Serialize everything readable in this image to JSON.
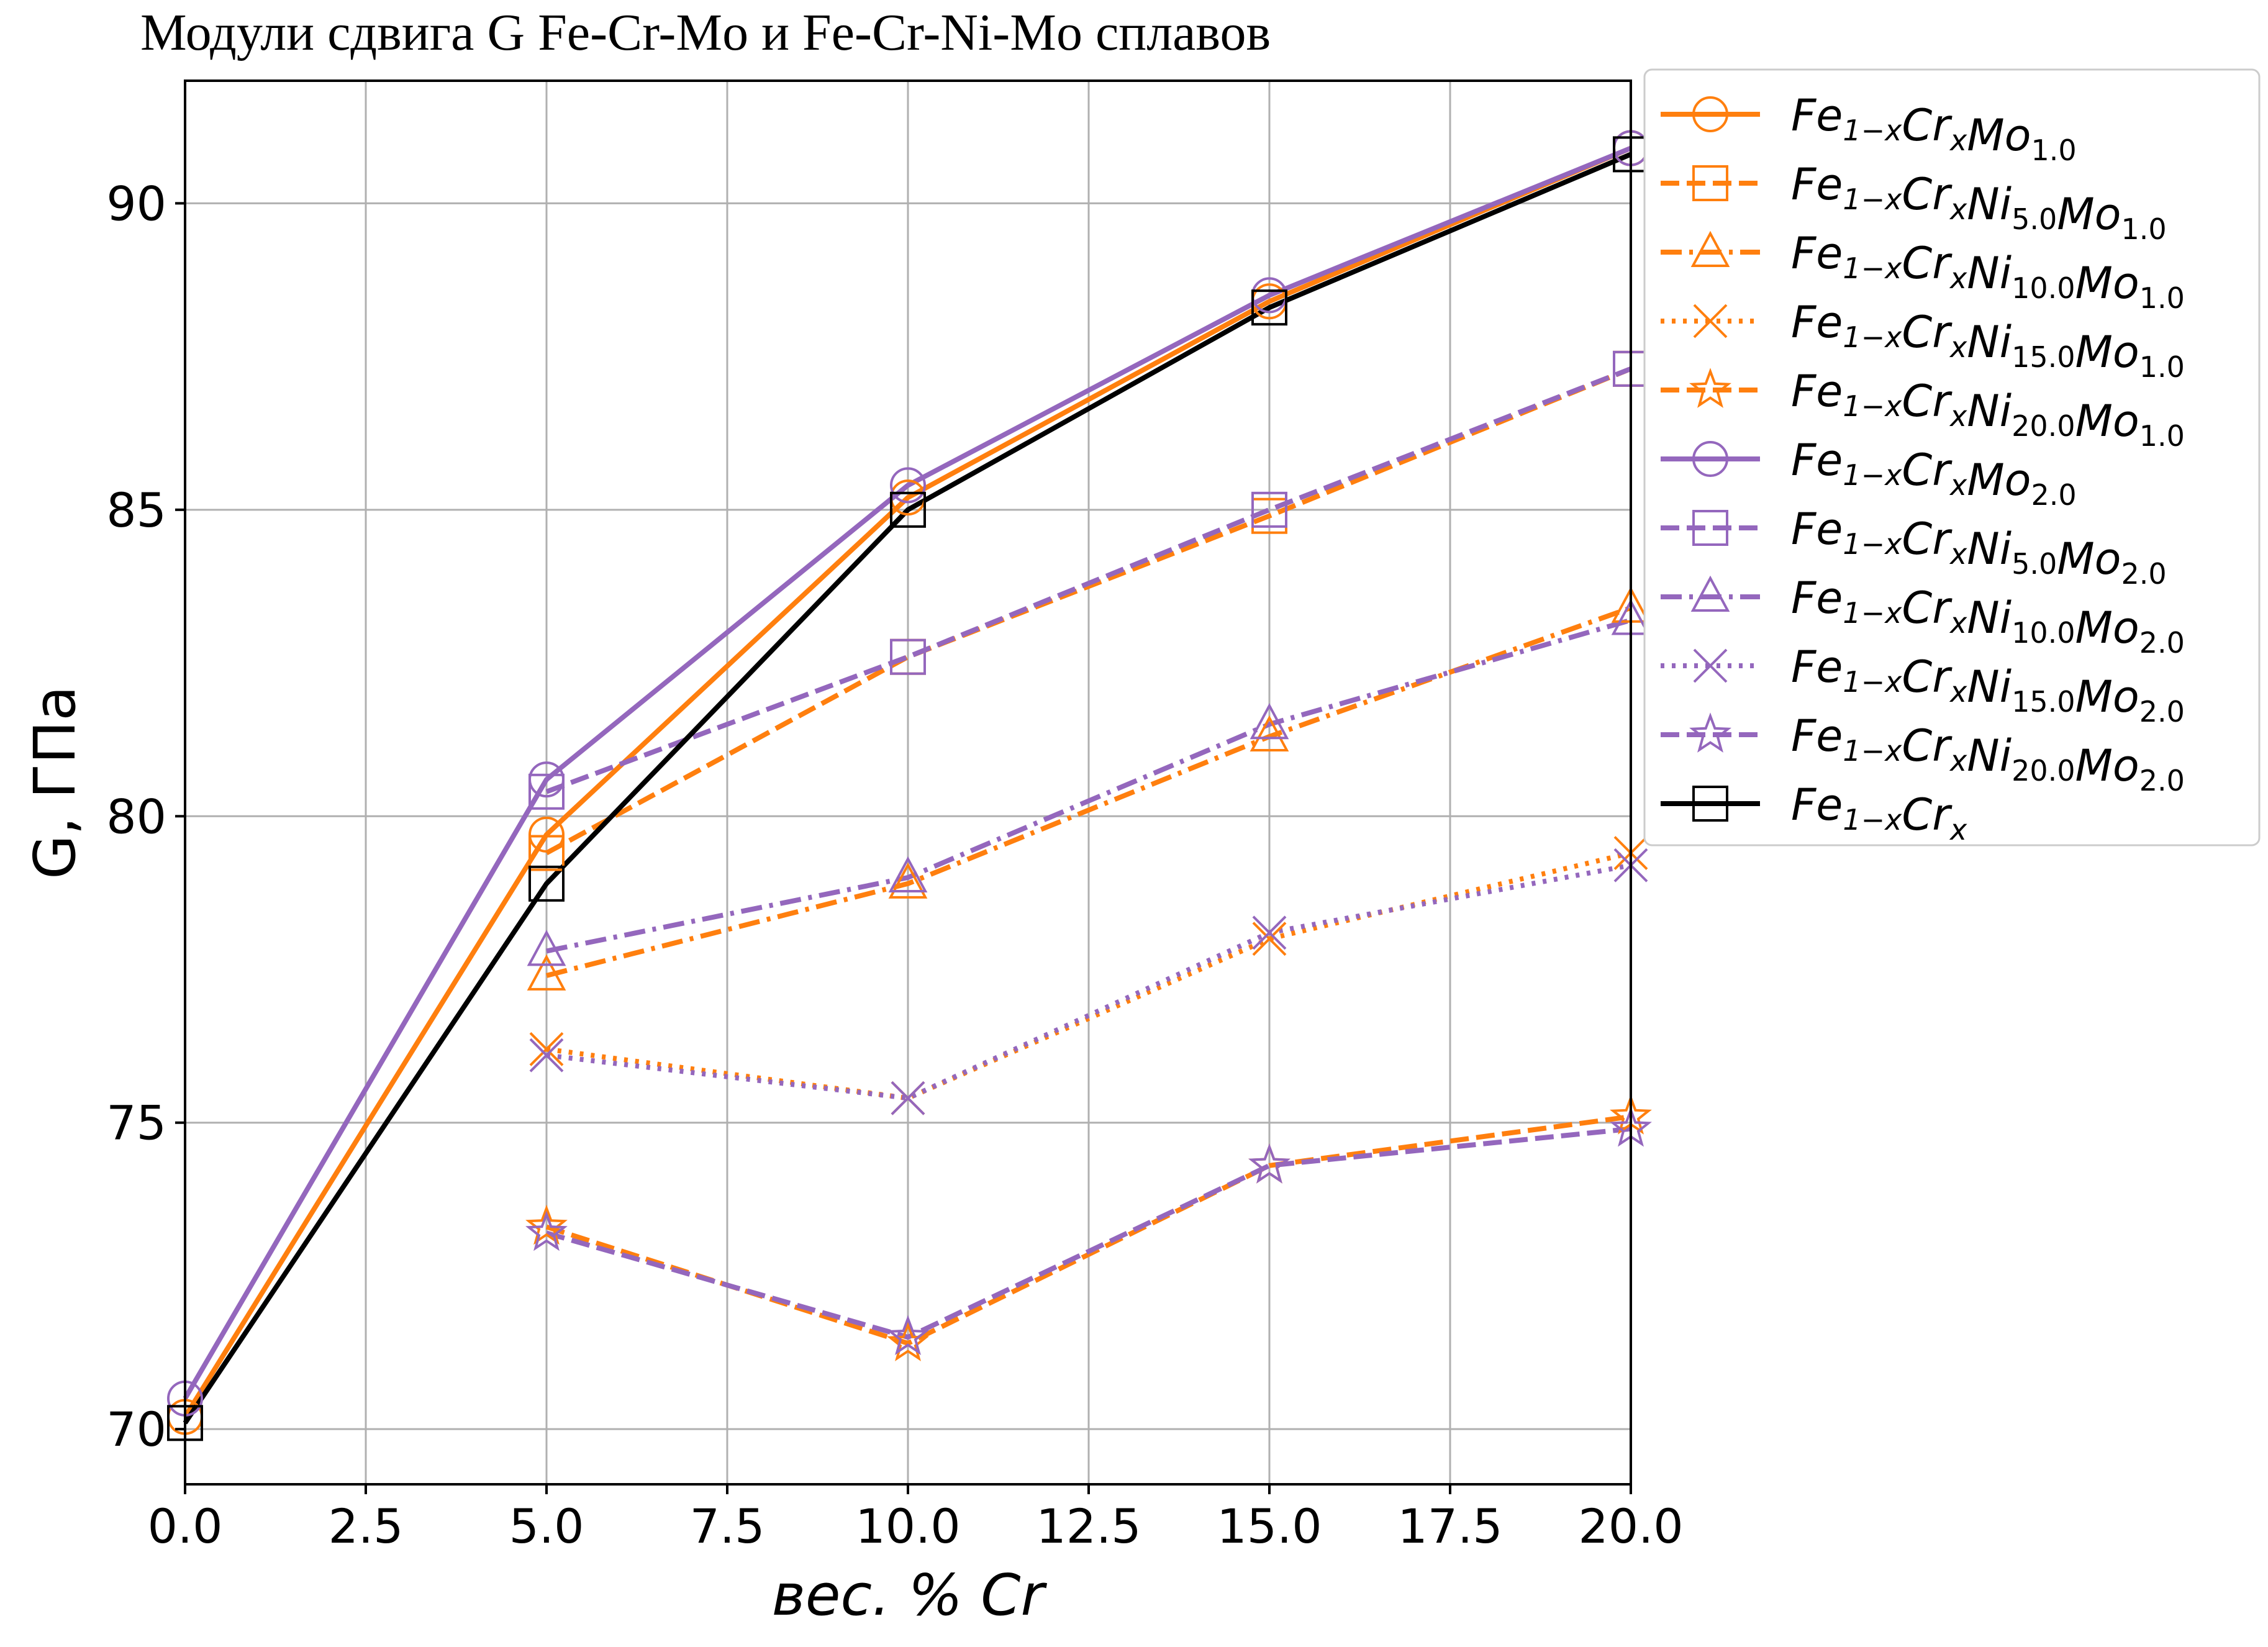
{
  "chart_data": {
    "type": "line",
    "title": "Модули сдвига G Fe-Cr-Mo и Fe-Cr-Ni-Mo сплавов",
    "xlabel": "вес. % Cr",
    "ylabel": "G, ГПа",
    "xlim": [
      0,
      20
    ],
    "ylim": [
      69.1,
      92
    ],
    "x_ticks": [
      "0.0",
      "2.5",
      "5.0",
      "7.5",
      "10.0",
      "12.5",
      "15.0",
      "17.5",
      "20.0"
    ],
    "y_ticks": [
      "70",
      "75",
      "80",
      "85",
      "90"
    ],
    "grid": true,
    "legend_position": "outside-right-top",
    "x": [
      0,
      5,
      10,
      15,
      20
    ],
    "series": [
      {
        "name": "Fe_{1-x}Cr_{x}Mo_{1.0}",
        "color": "#ff7f0e",
        "dash": "solid",
        "marker": "circle",
        "x": [
          0,
          5,
          10,
          15,
          20
        ],
        "values": [
          70.2,
          79.7,
          85.2,
          88.4,
          90.9
        ]
      },
      {
        "name": "Fe_{1-x}Cr_{x}Ni_{5.0}Mo_{1.0}",
        "color": "#ff7f0e",
        "dash": "dashed",
        "marker": "square",
        "x": [
          5,
          10,
          15,
          20
        ],
        "values": [
          79.4,
          82.6,
          84.9,
          87.3
        ]
      },
      {
        "name": "Fe_{1-x}Cr_{x}Ni_{10.0}Mo_{1.0}",
        "color": "#ff7f0e",
        "dash": "dashdot",
        "marker": "triangle",
        "x": [
          5,
          10,
          15,
          20
        ],
        "values": [
          77.4,
          78.9,
          81.3,
          83.4
        ]
      },
      {
        "name": "Fe_{1-x}Cr_{x}Ni_{15.0}Mo_{1.0}",
        "color": "#ff7f0e",
        "dash": "dotted",
        "marker": "x",
        "x": [
          5,
          10,
          15,
          20
        ],
        "values": [
          76.2,
          75.4,
          78.0,
          79.4
        ]
      },
      {
        "name": "Fe_{1-x}Cr_{x}Ni_{20.0}Mo_{1.0}",
        "color": "#ff7f0e",
        "dash": "dashed",
        "marker": "star",
        "x": [
          5,
          10,
          15,
          20
        ],
        "values": [
          73.3,
          71.4,
          74.3,
          75.1
        ]
      },
      {
        "name": "Fe_{1-x}Cr_{x}Mo_{2.0}",
        "color": "#9467bd",
        "dash": "solid",
        "marker": "circle",
        "x": [
          0,
          5,
          10,
          15,
          20
        ],
        "values": [
          70.5,
          80.6,
          85.4,
          88.5,
          90.9
        ]
      },
      {
        "name": "Fe_{1-x}Cr_{x}Ni_{5.0}Mo_{2.0}",
        "color": "#9467bd",
        "dash": "dashed",
        "marker": "square",
        "x": [
          5,
          10,
          15,
          20
        ],
        "values": [
          80.4,
          82.6,
          85.0,
          87.3
        ]
      },
      {
        "name": "Fe_{1-x}Cr_{x}Ni_{10.0}Mo_{2.0}",
        "color": "#9467bd",
        "dash": "dashdot",
        "marker": "triangle",
        "x": [
          5,
          10,
          15,
          20
        ],
        "values": [
          77.8,
          79.0,
          81.5,
          83.2
        ]
      },
      {
        "name": "Fe_{1-x}Cr_{x}Ni_{15.0}Mo_{2.0}",
        "color": "#9467bd",
        "dash": "dotted",
        "marker": "x",
        "x": [
          5,
          10,
          15,
          20
        ],
        "values": [
          76.1,
          75.4,
          78.1,
          79.2
        ]
      },
      {
        "name": "Fe_{1-x}Cr_{x}Ni_{20.0}Mo_{2.0}",
        "color": "#9467bd",
        "dash": "dashed",
        "marker": "star",
        "x": [
          5,
          10,
          15,
          20
        ],
        "values": [
          73.2,
          71.5,
          74.3,
          74.9
        ]
      },
      {
        "name": "Fe_{1-x}Cr_{x}",
        "color": "#000000",
        "dash": "solid",
        "marker": "square",
        "x": [
          0,
          5,
          10,
          15,
          20
        ],
        "values": [
          70.1,
          78.9,
          85.0,
          88.3,
          90.8
        ]
      }
    ]
  }
}
